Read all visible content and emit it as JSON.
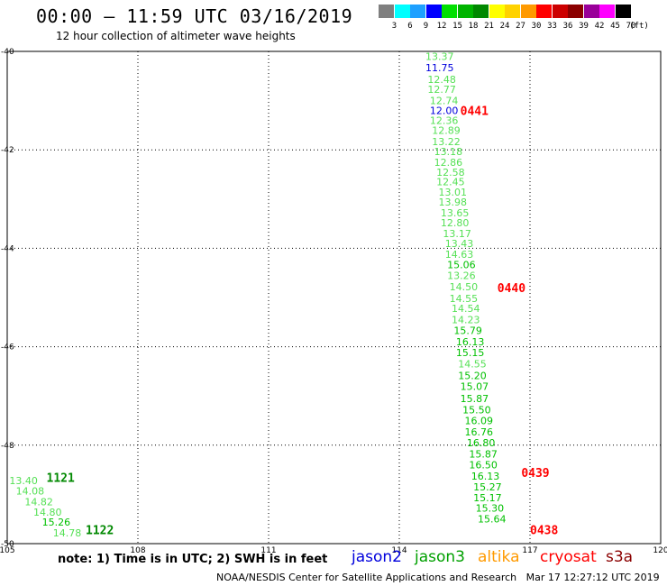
{
  "header": {
    "title": "00:00 – 11:59 UTC 03/16/2019",
    "subtitle": "12 hour collection of altimeter wave heights"
  },
  "color_scale": {
    "unit_label": "(ft)",
    "bins": [
      {
        "label": "3",
        "color": "#7f7f7f"
      },
      {
        "label": "6",
        "color": "#00ffff"
      },
      {
        "label": "9",
        "color": "#1ea0ff"
      },
      {
        "label": "12",
        "color": "#0000ff"
      },
      {
        "label": "15",
        "color": "#00e000"
      },
      {
        "label": "18",
        "color": "#00b400"
      },
      {
        "label": "21",
        "color": "#008800"
      },
      {
        "label": "24",
        "color": "#ffff00"
      },
      {
        "label": "27",
        "color": "#ffd200"
      },
      {
        "label": "30",
        "color": "#ff9a00"
      },
      {
        "label": "33",
        "color": "#ff0000"
      },
      {
        "label": "36",
        "color": "#cc0000"
      },
      {
        "label": "39",
        "color": "#8b0000"
      },
      {
        "label": "42",
        "color": "#990099"
      },
      {
        "label": "45",
        "color": "#ff00ff"
      },
      {
        "label": "70",
        "color": "#000000"
      }
    ]
  },
  "chart_data": {
    "type": "scatter",
    "title": "00:00 – 11:59 UTC 03/16/2019",
    "subtitle": "12 hour collection of altimeter wave heights",
    "xlim": [
      105,
      120
    ],
    "ylim": [
      -50,
      -40
    ],
    "x_ticks": [
      "105",
      "108",
      "111",
      "114",
      "117",
      "120"
    ],
    "y_ticks": [
      "-40",
      "-42",
      "-44",
      "-46",
      "-48",
      "-50"
    ],
    "grid": true,
    "point_colors": {
      "light": "#55e055",
      "mid": "#00c000",
      "dark": "#008800",
      "blue": "#0000dd"
    },
    "tracks": [
      {
        "label": "0441",
        "label_color": "#ff0000",
        "label_x": 115.4,
        "label_y": -41.2,
        "points": [
          {
            "x": 114.6,
            "y": -40.1,
            "v": "13.37",
            "c": "light"
          },
          {
            "x": 114.6,
            "y": -40.33,
            "v": "11.75",
            "c": "blue"
          },
          {
            "x": 114.65,
            "y": -40.57,
            "v": "12.48",
            "c": "light"
          },
          {
            "x": 114.65,
            "y": -40.77,
            "v": "12.77",
            "c": "light"
          },
          {
            "x": 114.7,
            "y": -41.0,
            "v": "12.74",
            "c": "light"
          },
          {
            "x": 114.7,
            "y": -41.2,
            "v": "12.00",
            "c": "blue"
          },
          {
            "x": 114.7,
            "y": -41.4,
            "v": "12.36",
            "c": "light"
          },
          {
            "x": 114.75,
            "y": -41.6,
            "v": "12.89",
            "c": "light"
          },
          {
            "x": 114.75,
            "y": -41.83,
            "v": "13.22",
            "c": "light"
          },
          {
            "x": 114.8,
            "y": -42.03,
            "v": "13.18",
            "c": "light"
          },
          {
            "x": 114.8,
            "y": -42.25,
            "v": "12.86",
            "c": "light"
          },
          {
            "x": 114.85,
            "y": -42.45,
            "v": "12.58",
            "c": "light"
          },
          {
            "x": 114.85,
            "y": -42.65,
            "v": "12.45",
            "c": "light"
          },
          {
            "x": 114.9,
            "y": -42.86,
            "v": "13.01",
            "c": "light"
          },
          {
            "x": 114.9,
            "y": -43.06,
            "v": "13.98",
            "c": "light"
          },
          {
            "x": 114.95,
            "y": -43.28,
            "v": "13.65",
            "c": "light"
          },
          {
            "x": 114.95,
            "y": -43.48,
            "v": "12.80",
            "c": "light"
          },
          {
            "x": 115.0,
            "y": -43.7,
            "v": "13.17",
            "c": "light"
          }
        ]
      },
      {
        "label": "0440",
        "label_color": "#ff0000",
        "label_x": 116.25,
        "label_y": -44.8,
        "points": [
          {
            "x": 115.05,
            "y": -43.9,
            "v": "13.43",
            "c": "light"
          },
          {
            "x": 115.05,
            "y": -44.12,
            "v": "14.63",
            "c": "light"
          },
          {
            "x": 115.1,
            "y": -44.33,
            "v": "15.06",
            "c": "mid"
          },
          {
            "x": 115.1,
            "y": -44.55,
            "v": "13.26",
            "c": "light"
          },
          {
            "x": 115.15,
            "y": -44.78,
            "v": "14.50",
            "c": "light"
          },
          {
            "x": 115.15,
            "y": -45.02,
            "v": "14.55",
            "c": "light"
          },
          {
            "x": 115.2,
            "y": -45.22,
            "v": "14.54",
            "c": "light"
          },
          {
            "x": 115.2,
            "y": -45.45,
            "v": "14.23",
            "c": "light"
          },
          {
            "x": 115.25,
            "y": -45.67,
            "v": "15.79",
            "c": "mid"
          },
          {
            "x": 115.3,
            "y": -45.9,
            "v": "16.13",
            "c": "mid"
          },
          {
            "x": 115.3,
            "y": -46.12,
            "v": "15.15",
            "c": "mid"
          },
          {
            "x": 115.35,
            "y": -46.35,
            "v": "14.55",
            "c": "light"
          },
          {
            "x": 115.35,
            "y": -46.58,
            "v": "15.20",
            "c": "mid"
          },
          {
            "x": 115.4,
            "y": -46.8,
            "v": "15.07",
            "c": "mid"
          },
          {
            "x": 115.4,
            "y": -47.05,
            "v": "15.87",
            "c": "mid"
          },
          {
            "x": 115.45,
            "y": -47.28,
            "v": "15.50",
            "c": "mid"
          },
          {
            "x": 115.5,
            "y": -47.5,
            "v": "16.09",
            "c": "mid"
          }
        ]
      },
      {
        "label": "0439",
        "label_color": "#ff0000",
        "label_x": 116.8,
        "label_y": -48.55,
        "points": [
          {
            "x": 115.5,
            "y": -47.73,
            "v": "16.76",
            "c": "mid"
          },
          {
            "x": 115.55,
            "y": -47.95,
            "v": "16.80",
            "c": "mid"
          },
          {
            "x": 115.6,
            "y": -48.18,
            "v": "15.87",
            "c": "mid"
          },
          {
            "x": 115.6,
            "y": -48.4,
            "v": "16.50",
            "c": "mid"
          },
          {
            "x": 115.65,
            "y": -48.63,
            "v": "16.13",
            "c": "mid"
          },
          {
            "x": 115.7,
            "y": -48.85,
            "v": "15.27",
            "c": "mid"
          },
          {
            "x": 115.7,
            "y": -49.07,
            "v": "15.17",
            "c": "mid"
          },
          {
            "x": 115.75,
            "y": -49.28,
            "v": "15.30",
            "c": "mid"
          },
          {
            "x": 115.8,
            "y": -49.5,
            "v": "15.64",
            "c": "mid"
          }
        ]
      },
      {
        "label": "0438",
        "label_color": "#ff0000",
        "label_x": 117.0,
        "label_y": -49.72,
        "points": []
      },
      {
        "label": "1121",
        "label_color": "#008800",
        "label_x": 105.9,
        "label_y": -48.65,
        "points": [
          {
            "x": 105.05,
            "y": -48.72,
            "v": "13.40",
            "c": "light"
          },
          {
            "x": 105.2,
            "y": -48.93,
            "v": "14.08",
            "c": "light"
          },
          {
            "x": 105.4,
            "y": -49.15,
            "v": "14.82",
            "c": "light"
          }
        ]
      },
      {
        "label": "1122",
        "label_color": "#008800",
        "label_x": 106.8,
        "label_y": -49.72,
        "points": [
          {
            "x": 105.6,
            "y": -49.36,
            "v": "14.80",
            "c": "light"
          },
          {
            "x": 105.8,
            "y": -49.56,
            "v": "15.26",
            "c": "mid"
          },
          {
            "x": 106.05,
            "y": -49.78,
            "v": "14.78",
            "c": "light"
          }
        ]
      }
    ]
  },
  "footer": {
    "note": "note: 1) Time is in UTC; 2) SWH is in feet",
    "legend": [
      {
        "name": "jason2",
        "color": "#0000dd"
      },
      {
        "name": "jason3",
        "color": "#00a000"
      },
      {
        "name": "altika",
        "color": "#ff9a00"
      },
      {
        "name": "cryosat",
        "color": "#ff0000"
      },
      {
        "name": "s3a",
        "color": "#8b0000"
      }
    ],
    "credit": "NOAA/NESDIS Center for Satellite Applications and Research   Mar 17 12:27:12 UTC 2019"
  }
}
